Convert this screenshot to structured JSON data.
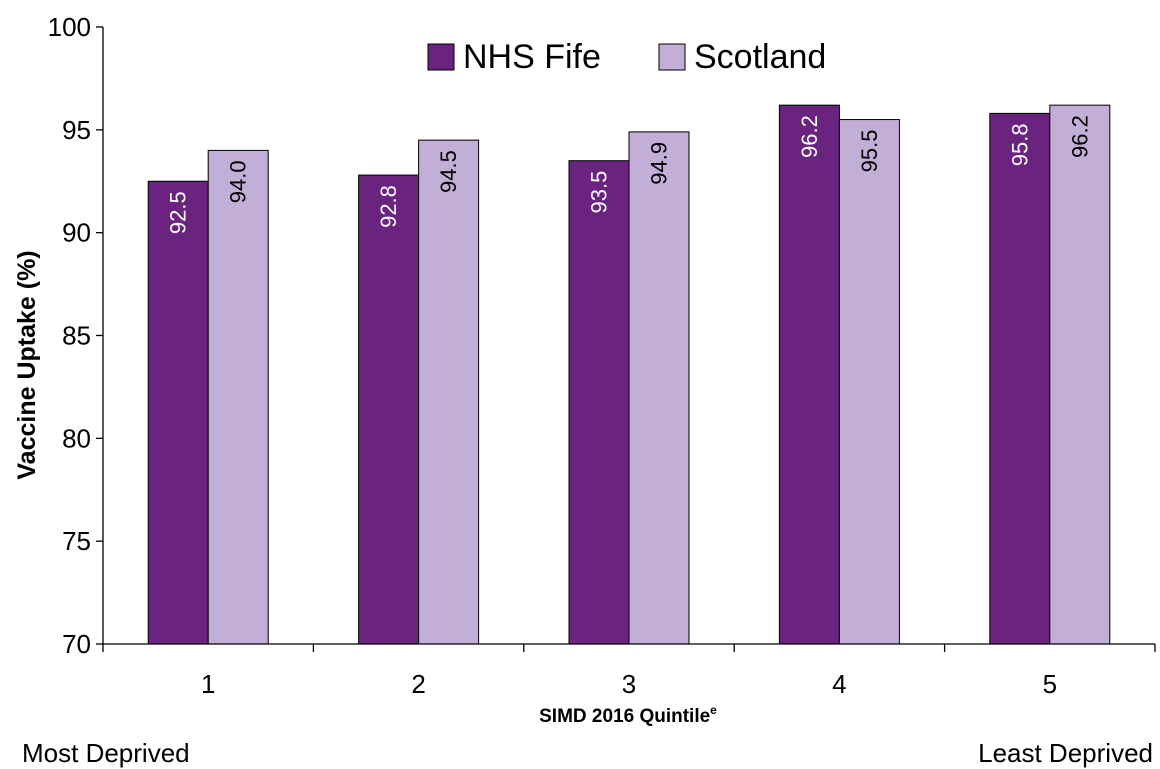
{
  "chart_data": {
    "type": "bar",
    "categories": [
      "1",
      "2",
      "3",
      "4",
      "5"
    ],
    "series": [
      {
        "name": "NHS Fife",
        "values": [
          92.5,
          92.8,
          93.5,
          96.2,
          95.8
        ],
        "labels": [
          "92.5",
          "92.8",
          "93.5",
          "96.2",
          "95.8"
        ],
        "color": "#6B2380"
      },
      {
        "name": "Scotland",
        "values": [
          94.0,
          94.5,
          94.9,
          95.5,
          96.2
        ],
        "labels": [
          "94.0",
          "94.5",
          "94.9",
          "95.5",
          "96.2"
        ],
        "color": "#C2AED6"
      }
    ],
    "ylabel": "Vaccine Uptake (%)",
    "xlabel": "SIMD 2016 Quintile",
    "xlabel_superscript": "e",
    "ylim": [
      70,
      100
    ],
    "yticks": [
      "70",
      "75",
      "80",
      "85",
      "90",
      "95",
      "100"
    ],
    "grid": false,
    "legend_position": "top-center",
    "bar_label_orientation": "vertical",
    "bar_label_colors": [
      "#FFFFFF",
      "#000000"
    ],
    "annotations": {
      "left": "Most Deprived",
      "right": "Least Deprived"
    }
  }
}
